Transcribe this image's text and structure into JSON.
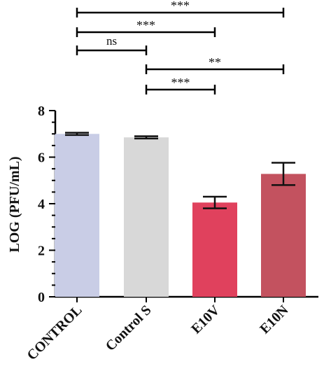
{
  "chart_data": {
    "type": "bar",
    "categories": [
      "CONTROL",
      "Control S",
      "E10V",
      "E10N"
    ],
    "values": [
      7.0,
      6.85,
      4.05,
      5.28
    ],
    "errors": [
      0.05,
      0.05,
      0.25,
      0.48
    ],
    "colors": [
      "#c9cde6",
      "#d8d8d8",
      "#e0415d",
      "#c3525f"
    ],
    "ylabel": "LOG (PFU/mL)",
    "ylim": [
      0,
      8
    ],
    "yticks": [
      0,
      2,
      4,
      6,
      8
    ],
    "significance": [
      {
        "from": 0,
        "to": 3,
        "label": "***"
      },
      {
        "from": 0,
        "to": 2,
        "label": "***"
      },
      {
        "from": 0,
        "to": 1,
        "label": "ns"
      },
      {
        "from": 1,
        "to": 3,
        "label": "**"
      },
      {
        "from": 1,
        "to": 2,
        "label": "***"
      }
    ]
  }
}
